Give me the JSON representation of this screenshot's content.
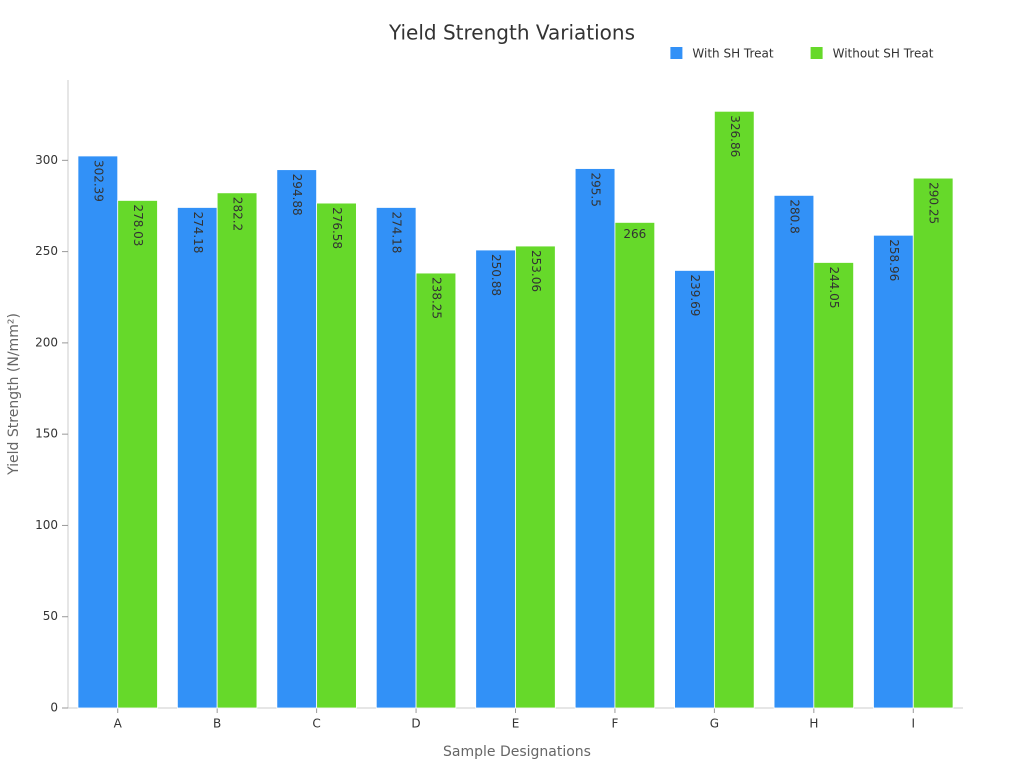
{
  "chart_data": {
    "type": "bar",
    "title": "Yield Strength Variations",
    "x_label": "Sample Designations",
    "y_label": "Yield Strength (N/mm²)",
    "categories": [
      "A",
      "B",
      "C",
      "D",
      "E",
      "F",
      "G",
      "H",
      "I"
    ],
    "series": [
      {
        "name": "With SH Treat",
        "color": "#3291f7",
        "values": [
          302.39,
          274.18,
          294.88,
          274.18,
          250.88,
          295.5,
          239.69,
          280.8,
          258.96
        ]
      },
      {
        "name": "Without SH Treat",
        "color": "#66d92a",
        "values": [
          278.03,
          282.2,
          276.58,
          238.25,
          253.06,
          266,
          326.86,
          244.05,
          290.25
        ]
      }
    ],
    "ylim": [
      0,
      344
    ],
    "yticks": [
      0,
      50,
      100,
      150,
      200,
      250,
      300
    ],
    "legend": "top-right"
  }
}
